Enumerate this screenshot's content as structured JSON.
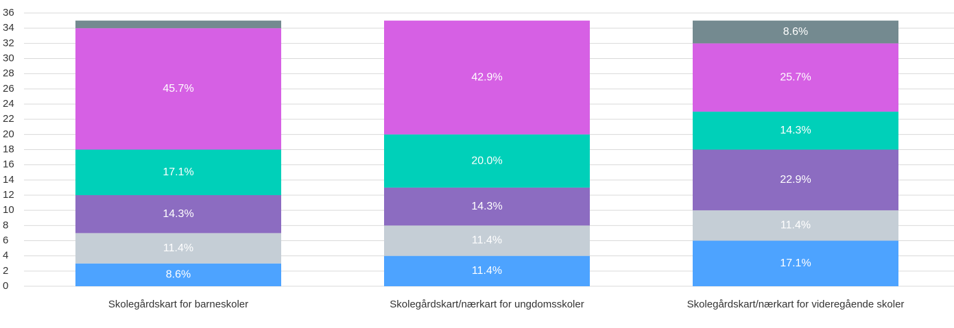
{
  "chart_data": {
    "type": "stacked_bar",
    "categories": [
      "Skolegårdskart for barneskoler",
      "Skolegårdskart/nærkart for ungdomsskoler",
      "Skolegårdskart/nærkart for videregående skoler"
    ],
    "series": [
      {
        "color": "#4da3ff",
        "values": [
          3,
          4,
          6
        ],
        "value_labels": [
          "8.6%",
          "11.4%",
          "17.1%"
        ]
      },
      {
        "color": "#c5ced6",
        "values": [
          4,
          4,
          4
        ],
        "value_labels": [
          "11.4%",
          "11.4%",
          "11.4%"
        ]
      },
      {
        "color": "#8c6cc1",
        "values": [
          5,
          5,
          8
        ],
        "value_labels": [
          "14.3%",
          "14.3%",
          "22.9%"
        ]
      },
      {
        "color": "#00d0b9",
        "values": [
          6,
          7,
          5
        ],
        "value_labels": [
          "17.1%",
          "20.0%",
          "14.3%"
        ]
      },
      {
        "color": "#d660e4",
        "values": [
          16,
          15,
          9
        ],
        "value_labels": [
          "45.7%",
          "42.9%",
          "25.7%"
        ]
      },
      {
        "color": "#748a90",
        "values": [
          1,
          0,
          3
        ],
        "value_labels": [
          null,
          null,
          "8.6%"
        ]
      }
    ],
    "ylim": [
      0,
      36
    ],
    "yticks": [
      0,
      2,
      4,
      6,
      8,
      10,
      12,
      14,
      16,
      18,
      20,
      22,
      24,
      26,
      28,
      30,
      32,
      34,
      36
    ],
    "grid": true
  }
}
